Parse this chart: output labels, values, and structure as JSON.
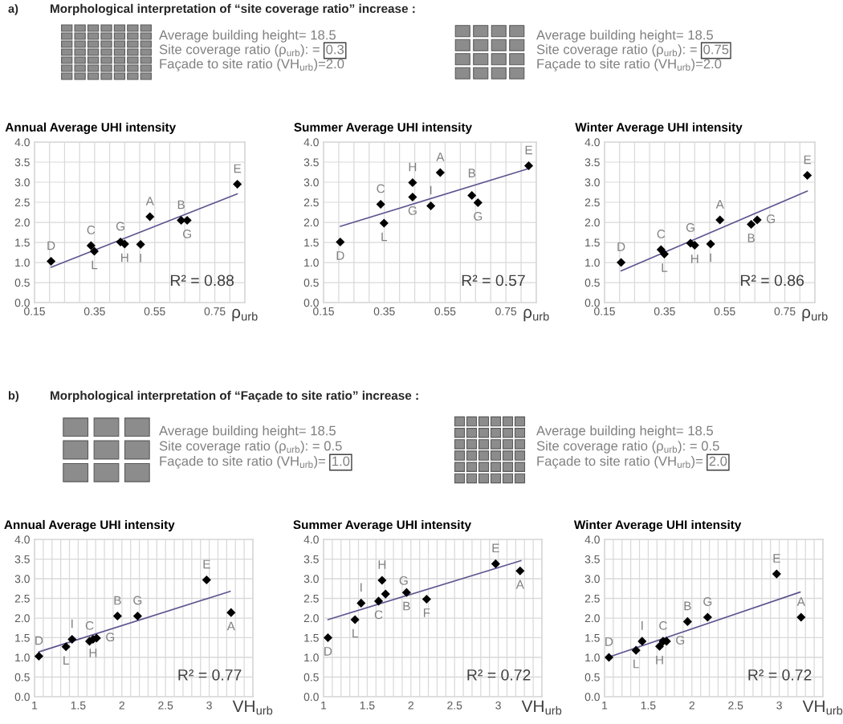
{
  "chart_data": [
    {
      "type": "other",
      "title": "Morphological interpretation of “site coverage ratio” increase :",
      "annotations": [
        "a)",
        "Average building height= 18.5",
        "Site coverage ratio (ρ$_{urb}$): =",
        "0.3",
        "Façade to site ratio (VH$_{urb}$)=2.0",
        "Average building height= 18.5",
        "Site coverage ratio (ρ$_{urb}$): =",
        "0.75",
        "Façade to site ratio (VH$_{urb}$)=2.0"
      ]
    },
    {
      "type": "scatter",
      "title": "Annual Average UHI intensity",
      "xlabel": "ρ$_{urb}$",
      "grid": true,
      "xlim": [
        0.15,
        0.85
      ],
      "xticks": [
        0.15,
        {
          "value": 0.2,
          "label": null
        },
        {
          "value": 0.25,
          "label": null
        },
        {
          "value": 0.3,
          "label": null
        },
        0.35,
        {
          "value": 0.4,
          "label": null
        },
        {
          "value": 0.45,
          "label": null
        },
        {
          "value": 0.5,
          "label": null
        },
        0.55,
        {
          "value": 0.6,
          "label": null
        },
        {
          "value": 0.65,
          "label": null
        },
        {
          "value": 0.7,
          "label": null
        },
        0.75,
        {
          "value": 0.8,
          "label": null
        },
        {
          "value": 0.85,
          "label": null
        }
      ],
      "ylim": [
        0,
        4
      ],
      "yticks": [
        {
          "value": 0,
          "label": "0.0"
        },
        {
          "value": 0.5,
          "label": "0.5"
        },
        {
          "value": 1,
          "label": "1.0"
        },
        {
          "value": 1.5,
          "label": "1.5"
        },
        {
          "value": 2,
          "label": "2.0"
        },
        {
          "value": 2.5,
          "label": "2.5"
        },
        {
          "value": 3,
          "label": "3.0"
        },
        {
          "value": 3.5,
          "label": "3.5"
        },
        {
          "value": 4,
          "label": "4.0"
        }
      ],
      "series": [
        {
          "type": "scatter",
          "marker": "diamond",
          "color": "#000000",
          "x": [
            0.205,
            0.338,
            0.349,
            0.436,
            0.45,
            0.503,
            0.534,
            0.638,
            0.658,
            0.825
          ],
          "values": [
            1.03,
            1.42,
            1.28,
            1.51,
            1.46,
            1.45,
            2.14,
            2.05,
            2.05,
            2.95
          ]
        },
        {
          "type": "line",
          "marker": "none",
          "color": "#5e5590",
          "x": [
            0.205,
            0.825
          ],
          "values": [
            0.88,
            2.71
          ]
        }
      ],
      "annotations": [
        {
          "text": "D",
          "x": 0.205,
          "y": 1.03
        },
        {
          "text": "C",
          "x": 0.338,
          "y": 1.42
        },
        {
          "text": "L",
          "x": 0.349,
          "y": 1.28
        },
        {
          "text": "G",
          "x": 0.436,
          "y": 1.51
        },
        {
          "text": "H",
          "x": 0.45,
          "y": 1.46
        },
        {
          "text": "I",
          "x": 0.503,
          "y": 1.45
        },
        {
          "text": "A",
          "x": 0.534,
          "y": 2.14
        },
        {
          "text": "B",
          "x": 0.638,
          "y": 2.05
        },
        {
          "text": "G",
          "x": 0.658,
          "y": 2.05
        },
        {
          "text": "E",
          "x": 0.825,
          "y": 2.95
        },
        "R² = 0.88"
      ]
    },
    {
      "type": "scatter",
      "title": "Summer Average UHI intensity",
      "xlabel": "ρ$_{urb}$",
      "grid": true,
      "xlim": [
        0.15,
        0.85
      ],
      "xticks": [
        0.15,
        {
          "value": 0.2,
          "label": null
        },
        {
          "value": 0.25,
          "label": null
        },
        {
          "value": 0.3,
          "label": null
        },
        0.35,
        {
          "value": 0.4,
          "label": null
        },
        {
          "value": 0.45,
          "label": null
        },
        {
          "value": 0.5,
          "label": null
        },
        0.55,
        {
          "value": 0.6,
          "label": null
        },
        {
          "value": 0.65,
          "label": null
        },
        {
          "value": 0.7,
          "label": null
        },
        0.75,
        {
          "value": 0.8,
          "label": null
        },
        {
          "value": 0.85,
          "label": null
        }
      ],
      "ylim": [
        0,
        4
      ],
      "yticks": [
        {
          "value": 0,
          "label": "0.0"
        },
        {
          "value": 0.5,
          "label": "0.5"
        },
        {
          "value": 1,
          "label": "1.0"
        },
        {
          "value": 1.5,
          "label": "1.5"
        },
        {
          "value": 2,
          "label": "2.0"
        },
        {
          "value": 2.5,
          "label": "2.5"
        },
        {
          "value": 3,
          "label": "3.0"
        },
        {
          "value": 3.5,
          "label": "3.5"
        },
        {
          "value": 4,
          "label": "4.0"
        }
      ],
      "series": [
        {
          "type": "scatter",
          "marker": "diamond",
          "color": "#000000",
          "x": [
            0.205,
            0.338,
            0.349,
            0.443,
            0.443,
            0.503,
            0.534,
            0.638,
            0.658,
            0.825
          ],
          "values": [
            1.51,
            2.45,
            1.98,
            2.63,
            2.99,
            2.41,
            3.24,
            2.67,
            2.49,
            3.41
          ]
        },
        {
          "type": "line",
          "marker": "none",
          "color": "#5e5590",
          "x": [
            0.205,
            0.825
          ],
          "values": [
            1.9,
            3.34
          ]
        }
      ],
      "annotations": [
        {
          "text": "D",
          "x": 0.205,
          "y": 1.51
        },
        {
          "text": "C",
          "x": 0.338,
          "y": 2.45
        },
        {
          "text": "L",
          "x": 0.349,
          "y": 1.98
        },
        {
          "text": "G",
          "x": 0.443,
          "y": 2.63
        },
        {
          "text": "H",
          "x": 0.443,
          "y": 2.99
        },
        {
          "text": "I",
          "x": 0.503,
          "y": 2.41
        },
        {
          "text": "A",
          "x": 0.534,
          "y": 3.24
        },
        {
          "text": "B",
          "x": 0.638,
          "y": 2.67
        },
        {
          "text": "G",
          "x": 0.658,
          "y": 2.49
        },
        {
          "text": "E",
          "x": 0.825,
          "y": 3.41
        },
        "R² = 0.57"
      ]
    },
    {
      "type": "scatter",
      "title": "Winter Average UHI intensity",
      "xlabel": "ρ$_{urb}$",
      "grid": true,
      "xlim": [
        0.15,
        0.85
      ],
      "xticks": [
        0.15,
        {
          "value": 0.2,
          "label": null
        },
        {
          "value": 0.25,
          "label": null
        },
        {
          "value": 0.3,
          "label": null
        },
        0.35,
        {
          "value": 0.4,
          "label": null
        },
        {
          "value": 0.45,
          "label": null
        },
        {
          "value": 0.5,
          "label": null
        },
        0.55,
        {
          "value": 0.6,
          "label": null
        },
        {
          "value": 0.65,
          "label": null
        },
        {
          "value": 0.7,
          "label": null
        },
        0.75,
        {
          "value": 0.8,
          "label": null
        },
        {
          "value": 0.85,
          "label": null
        }
      ],
      "ylim": [
        0,
        4
      ],
      "yticks": [
        {
          "value": 0,
          "label": "0.0"
        },
        {
          "value": 0.5,
          "label": "0.5"
        },
        {
          "value": 1,
          "label": "1.0"
        },
        {
          "value": 1.5,
          "label": "1.5"
        },
        {
          "value": 2,
          "label": "2.0"
        },
        {
          "value": 2.5,
          "label": "2.5"
        },
        {
          "value": 3,
          "label": "3.0"
        },
        {
          "value": 3.5,
          "label": "3.5"
        },
        {
          "value": 4,
          "label": "4.0"
        }
      ],
      "series": [
        {
          "type": "scatter",
          "marker": "diamond",
          "color": "#000000",
          "x": [
            0.205,
            0.338,
            0.349,
            0.436,
            0.45,
            0.503,
            0.534,
            0.638,
            0.658,
            0.825
          ],
          "values": [
            1.0,
            1.32,
            1.21,
            1.48,
            1.43,
            1.46,
            2.06,
            1.95,
            2.06,
            3.17
          ]
        },
        {
          "type": "line",
          "marker": "none",
          "color": "#5e5590",
          "x": [
            0.205,
            0.825
          ],
          "values": [
            0.79,
            2.78
          ]
        }
      ],
      "annotations": [
        {
          "text": "D",
          "x": 0.205,
          "y": 1.0
        },
        {
          "text": "C",
          "x": 0.338,
          "y": 1.32
        },
        {
          "text": "L",
          "x": 0.349,
          "y": 1.21
        },
        {
          "text": "G",
          "x": 0.436,
          "y": 1.48
        },
        {
          "text": "H",
          "x": 0.45,
          "y": 1.43
        },
        {
          "text": "I",
          "x": 0.503,
          "y": 1.46
        },
        {
          "text": "A",
          "x": 0.534,
          "y": 2.06
        },
        {
          "text": "B",
          "x": 0.638,
          "y": 1.95
        },
        {
          "text": "G",
          "x": 0.658,
          "y": 2.06
        },
        {
          "text": "E",
          "x": 0.825,
          "y": 3.17
        },
        "R² = 0.86"
      ]
    },
    {
      "type": "other",
      "title": "Morphological interpretation of “Façade to site ratio” increase :",
      "annotations": [
        "b)",
        "Average building height= 18.5",
        "Site coverage ratio (ρ$_{urb}$): = 0.5",
        "Façade to site ratio (VH$_{urb}$)=",
        "1.0",
        "Average building height= 18.5",
        "Site coverage ratio (ρ$_{urb}$): = 0.5",
        "Façade to site ratio (VH$_{urb}$)=",
        "2.0"
      ]
    },
    {
      "type": "scatter",
      "title": "Annual Average UHI intensity",
      "xlabel": "VH$_{urb}$",
      "grid": true,
      "xlim": [
        1,
        3.5
      ],
      "xticks": [
        1,
        {
          "value": 1.1,
          "label": null
        },
        {
          "value": 1.2,
          "label": null
        },
        {
          "value": 1.3,
          "label": null
        },
        {
          "value": 1.4,
          "label": null
        },
        1.5,
        {
          "value": 1.6,
          "label": null
        },
        {
          "value": 1.7,
          "label": null
        },
        {
          "value": 1.8,
          "label": null
        },
        {
          "value": 1.9,
          "label": null
        },
        2,
        {
          "value": 2.1,
          "label": null
        },
        {
          "value": 2.2,
          "label": null
        },
        {
          "value": 2.3,
          "label": null
        },
        {
          "value": 2.4,
          "label": null
        },
        2.5,
        {
          "value": 2.6,
          "label": null
        },
        {
          "value": 2.7,
          "label": null
        },
        {
          "value": 2.8,
          "label": null
        },
        {
          "value": 2.9,
          "label": null
        },
        3,
        {
          "value": 3.1,
          "label": null
        },
        {
          "value": 3.2,
          "label": null
        },
        {
          "value": 3.3,
          "label": null
        },
        {
          "value": 3.4,
          "label": null
        },
        {
          "value": 3.5,
          "label": null
        }
      ],
      "ylim": [
        0,
        4
      ],
      "yticks": [
        {
          "value": 0,
          "label": "0.0"
        },
        {
          "value": 0.5,
          "label": "0.5"
        },
        {
          "value": 1,
          "label": "1.0"
        },
        {
          "value": 1.5,
          "label": "1.5"
        },
        {
          "value": 2,
          "label": "2.0"
        },
        {
          "value": 2.5,
          "label": "2.5"
        },
        {
          "value": 3,
          "label": "3.0"
        },
        {
          "value": 3.5,
          "label": "3.5"
        },
        {
          "value": 4,
          "label": "4.0"
        }
      ],
      "series": [
        {
          "type": "scatter",
          "marker": "diamond",
          "color": "#000000",
          "x": [
            1.05,
            1.36,
            1.43,
            1.63,
            1.67,
            1.71,
            1.95,
            2.18,
            2.97,
            3.25
          ],
          "values": [
            1.03,
            1.27,
            1.46,
            1.41,
            1.46,
            1.49,
            2.05,
            2.05,
            2.97,
            2.14
          ]
        },
        {
          "type": "line",
          "marker": "none",
          "color": "#5e5590",
          "x": [
            1.05,
            3.24
          ],
          "values": [
            1.14,
            2.68
          ]
        }
      ],
      "annotations": [
        {
          "text": "D",
          "x": 1.05,
          "y": 1.03
        },
        {
          "text": "L",
          "x": 1.36,
          "y": 1.27
        },
        {
          "text": "I",
          "x": 1.43,
          "y": 1.46
        },
        {
          "text": "C",
          "x": 1.63,
          "y": 1.41
        },
        {
          "text": "H",
          "x": 1.67,
          "y": 1.46
        },
        {
          "text": "G",
          "x": 1.71,
          "y": 1.49
        },
        {
          "text": "B",
          "x": 1.95,
          "y": 2.05
        },
        {
          "text": "G",
          "x": 2.18,
          "y": 2.05
        },
        {
          "text": "E",
          "x": 2.97,
          "y": 2.97
        },
        {
          "text": "A",
          "x": 3.25,
          "y": 2.14
        },
        "R² = 0.77"
      ]
    },
    {
      "type": "scatter",
      "title": "Summer Average UHI intensity",
      "xlabel": "VH$_{urb}$",
      "grid": true,
      "xlim": [
        1,
        3.5
      ],
      "xticks": [
        1,
        {
          "value": 1.1,
          "label": null
        },
        {
          "value": 1.2,
          "label": null
        },
        {
          "value": 1.3,
          "label": null
        },
        {
          "value": 1.4,
          "label": null
        },
        1.5,
        {
          "value": 1.6,
          "label": null
        },
        {
          "value": 1.7,
          "label": null
        },
        {
          "value": 1.8,
          "label": null
        },
        {
          "value": 1.9,
          "label": null
        },
        2,
        {
          "value": 2.1,
          "label": null
        },
        {
          "value": 2.2,
          "label": null
        },
        {
          "value": 2.3,
          "label": null
        },
        {
          "value": 2.4,
          "label": null
        },
        2.5,
        {
          "value": 2.6,
          "label": null
        },
        {
          "value": 2.7,
          "label": null
        },
        {
          "value": 2.8,
          "label": null
        },
        {
          "value": 2.9,
          "label": null
        },
        3,
        {
          "value": 3.1,
          "label": null
        },
        {
          "value": 3.2,
          "label": null
        },
        {
          "value": 3.3,
          "label": null
        },
        {
          "value": 3.4,
          "label": null
        },
        {
          "value": 3.5,
          "label": null
        }
      ],
      "ylim": [
        0,
        4
      ],
      "yticks": [
        {
          "value": 0,
          "label": "0.0"
        },
        {
          "value": 0.5,
          "label": "0.5"
        },
        {
          "value": 1,
          "label": "1.0"
        },
        {
          "value": 1.5,
          "label": "1.5"
        },
        {
          "value": 2,
          "label": "2.0"
        },
        {
          "value": 2.5,
          "label": "2.5"
        },
        {
          "value": 3,
          "label": "3.0"
        },
        {
          "value": 3.5,
          "label": "3.5"
        },
        {
          "value": 4,
          "label": "4.0"
        }
      ],
      "series": [
        {
          "type": "scatter",
          "marker": "diamond",
          "color": "#000000",
          "x": [
            1.05,
            1.36,
            1.43,
            1.63,
            1.67,
            1.71,
            1.95,
            2.18,
            2.97,
            3.25
          ],
          "values": [
            1.5,
            1.96,
            2.38,
            2.43,
            2.96,
            2.61,
            2.65,
            2.48,
            3.38,
            3.2
          ]
        },
        {
          "type": "line",
          "marker": "none",
          "color": "#5e5590",
          "x": [
            1.05,
            3.26
          ],
          "values": [
            1.96,
            3.46
          ]
        }
      ],
      "annotations": [
        {
          "text": "D",
          "x": 1.05,
          "y": 1.5
        },
        {
          "text": "L",
          "x": 1.36,
          "y": 1.96
        },
        {
          "text": "I",
          "x": 1.43,
          "y": 2.38
        },
        {
          "text": "C",
          "x": 1.63,
          "y": 2.43
        },
        {
          "text": "H",
          "x": 1.67,
          "y": 2.96
        },
        {
          "text": "G",
          "x": 1.71,
          "y": 2.61
        },
        {
          "text": "B",
          "x": 1.95,
          "y": 2.65
        },
        {
          "text": "F",
          "x": 2.18,
          "y": 2.48
        },
        {
          "text": "E",
          "x": 2.97,
          "y": 3.38
        },
        {
          "text": "A",
          "x": 3.25,
          "y": 3.2
        },
        "R² = 0.72"
      ]
    },
    {
      "type": "scatter",
      "title": "Winter Average UHI intensity",
      "xlabel": "VH$_{urb}$",
      "grid": true,
      "xlim": [
        1,
        3.5
      ],
      "xticks": [
        1,
        {
          "value": 1.1,
          "label": null
        },
        {
          "value": 1.2,
          "label": null
        },
        {
          "value": 1.3,
          "label": null
        },
        {
          "value": 1.4,
          "label": null
        },
        1.5,
        {
          "value": 1.6,
          "label": null
        },
        {
          "value": 1.7,
          "label": null
        },
        {
          "value": 1.8,
          "label": null
        },
        {
          "value": 1.9,
          "label": null
        },
        2,
        {
          "value": 2.1,
          "label": null
        },
        {
          "value": 2.2,
          "label": null
        },
        {
          "value": 2.3,
          "label": null
        },
        {
          "value": 2.4,
          "label": null
        },
        2.5,
        {
          "value": 2.6,
          "label": null
        },
        {
          "value": 2.7,
          "label": null
        },
        {
          "value": 2.8,
          "label": null
        },
        {
          "value": 2.9,
          "label": null
        },
        3,
        {
          "value": 3.1,
          "label": null
        },
        {
          "value": 3.2,
          "label": null
        },
        {
          "value": 3.3,
          "label": null
        },
        {
          "value": 3.4,
          "label": null
        },
        {
          "value": 3.5,
          "label": null
        }
      ],
      "ylim": [
        0,
        4
      ],
      "yticks": [
        {
          "value": 0,
          "label": "0.0"
        },
        {
          "value": 0.5,
          "label": "0.5"
        },
        {
          "value": 1,
          "label": "1.0"
        },
        {
          "value": 1.5,
          "label": "1.5"
        },
        {
          "value": 2,
          "label": "2.0"
        },
        {
          "value": 2.5,
          "label": "2.5"
        },
        {
          "value": 3,
          "label": "3.0"
        },
        {
          "value": 3.5,
          "label": "3.5"
        },
        {
          "value": 4,
          "label": "4.0"
        }
      ],
      "series": [
        {
          "type": "scatter",
          "marker": "diamond",
          "color": "#000000",
          "x": [
            1.05,
            1.36,
            1.43,
            1.63,
            1.67,
            1.71,
            1.95,
            2.18,
            2.97,
            3.25
          ],
          "values": [
            1.0,
            1.18,
            1.41,
            1.28,
            1.41,
            1.41,
            1.91,
            2.02,
            3.12,
            2.02
          ]
        },
        {
          "type": "line",
          "marker": "none",
          "color": "#5e5590",
          "x": [
            1.05,
            3.24
          ],
          "values": [
            1.01,
            2.66
          ]
        }
      ],
      "annotations": [
        {
          "text": "D",
          "x": 1.05,
          "y": 1.0
        },
        {
          "text": "L",
          "x": 1.36,
          "y": 1.18
        },
        {
          "text": "I",
          "x": 1.43,
          "y": 1.41
        },
        {
          "text": "H",
          "x": 1.63,
          "y": 1.28
        },
        {
          "text": "C",
          "x": 1.67,
          "y": 1.41
        },
        {
          "text": "G",
          "x": 1.71,
          "y": 1.41
        },
        {
          "text": "B",
          "x": 1.95,
          "y": 1.91
        },
        {
          "text": "G",
          "x": 2.18,
          "y": 2.02
        },
        {
          "text": "E",
          "x": 2.97,
          "y": 3.12
        },
        {
          "text": "A",
          "x": 3.25,
          "y": 2.02
        },
        "R² = 0.72"
      ]
    }
  ]
}
